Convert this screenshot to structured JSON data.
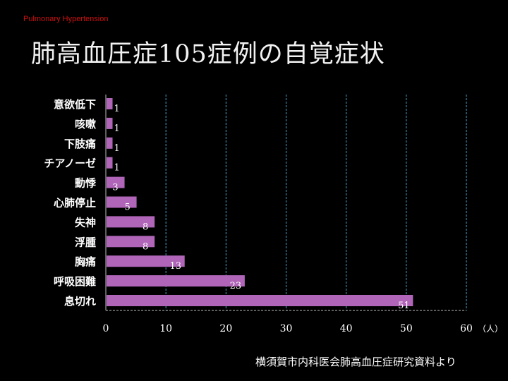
{
  "header": {
    "subtitle": "Pulmonary Hypertension",
    "title": "肺高血圧症105症例の自覚症状"
  },
  "source": "横須賀市内科医会肺高血圧症研究資料より",
  "chart_data": {
    "type": "bar",
    "orientation": "horizontal",
    "categories": [
      "意欲低下",
      "咳嗽",
      "下肢痛",
      "チアノーゼ",
      "動悸",
      "心肺停止",
      "失神",
      "浮腫",
      "胸痛",
      "呼吸困難",
      "息切れ"
    ],
    "values": [
      1,
      1,
      1,
      1,
      3,
      5,
      8,
      8,
      13,
      23,
      51
    ],
    "xlim": [
      0,
      60
    ],
    "xticks": [
      "0",
      "10",
      "20",
      "30",
      "40",
      "50",
      "60"
    ],
    "xunit": "（人）",
    "grid": true,
    "bar_color": "#b065b8",
    "grid_color": "#4aa3c8"
  }
}
